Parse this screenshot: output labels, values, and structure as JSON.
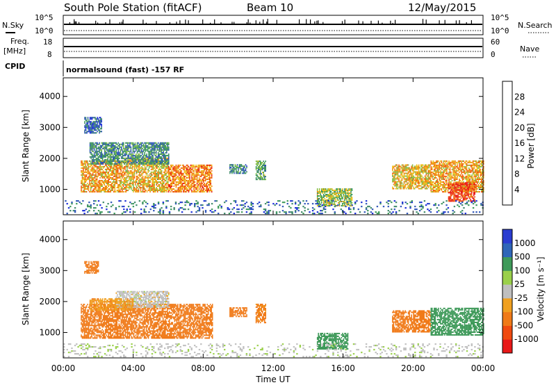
{
  "header": {
    "station": "South Pole Station (fitACF)",
    "beam": "Beam 10",
    "date": "12/May/2015",
    "program": "normalsound (fast) -157 RF"
  },
  "aux_panel": {
    "left_labels": {
      "nsky": "N.Sky",
      "freq_line1": "Freq.",
      "freq_line2": "[MHz]",
      "cpid": "CPID"
    },
    "right_labels": {
      "nsearch": "N.Search",
      "nave": "Nave"
    },
    "nsky_ticks": [
      "10^5",
      "10^0"
    ],
    "nsearch_ticks": [
      "10^5",
      "10^0"
    ],
    "freq_ticks": [
      "18",
      "8"
    ],
    "nave_ticks": [
      "60",
      "0"
    ]
  },
  "colors": {
    "power": [
      "#1a2cd8",
      "#2e55b8",
      "#3f8a6a",
      "#3d9a5a",
      "#88c04a",
      "#f0c020",
      "#f08a18",
      "#f05a10",
      "#e81818"
    ],
    "velocity": [
      "#e81818",
      "#f04a10",
      "#f07a18",
      "#f0a020",
      "#bfbfbf",
      "#9ad04a",
      "#3f9a5a",
      "#2f66b8",
      "#2a3cd0"
    ]
  },
  "chart_data": [
    {
      "type": "heatmap",
      "name": "power",
      "ylabel": "Slant Range [km]",
      "xlabel": "Time UT",
      "xlim": [
        0,
        24
      ],
      "ylim": [
        180,
        4600
      ],
      "x_tick_labels": [
        "00:00",
        "04:00",
        "08:00",
        "12:00",
        "16:00",
        "20:00",
        "00:00"
      ],
      "x_ticks": [
        0,
        4,
        8,
        12,
        16,
        20,
        24
      ],
      "y_ticks": [
        1000,
        2000,
        3000,
        4000
      ],
      "colorbar": {
        "label": "Power [dB]",
        "range": [
          0,
          32
        ],
        "tick_labels": [
          "28",
          "24",
          "20",
          "16",
          "12",
          "8",
          "4"
        ],
        "ticks": [
          28,
          24,
          20,
          16,
          12,
          8,
          4
        ]
      },
      "patches": [
        {
          "t0": 1.0,
          "t1": 3.5,
          "r0": 900,
          "r1": 1900,
          "v": 22
        },
        {
          "t0": 3.5,
          "t1": 6.0,
          "r0": 900,
          "r1": 2000,
          "v": 20
        },
        {
          "t0": 6.0,
          "t1": 8.5,
          "r0": 900,
          "r1": 1800,
          "v": 24
        },
        {
          "t0": 1.5,
          "t1": 6.0,
          "r0": 1800,
          "r1": 2500,
          "v": 10
        },
        {
          "t0": 1.2,
          "t1": 2.2,
          "r0": 2800,
          "r1": 3300,
          "v": 6
        },
        {
          "t0": 9.5,
          "t1": 10.5,
          "r0": 1500,
          "r1": 1800,
          "v": 9
        },
        {
          "t0": 11.0,
          "t1": 11.6,
          "r0": 1300,
          "r1": 1900,
          "v": 12
        },
        {
          "t0": 14.5,
          "t1": 16.5,
          "r0": 450,
          "r1": 1000,
          "v": 16
        },
        {
          "t0": 18.8,
          "t1": 21.0,
          "r0": 1000,
          "r1": 1800,
          "v": 20
        },
        {
          "t0": 21.0,
          "t1": 24.0,
          "r0": 900,
          "r1": 1900,
          "v": 22
        },
        {
          "t0": 22.0,
          "t1": 23.5,
          "r0": 600,
          "r1": 1200,
          "v": 28
        },
        {
          "t0": 0.0,
          "t1": 24.0,
          "r0": 200,
          "r1": 650,
          "v": 7
        }
      ]
    },
    {
      "type": "heatmap",
      "name": "velocity",
      "ylabel": "Slant Range [km]",
      "xlabel": "Time UT",
      "xlim": [
        0,
        24
      ],
      "ylim": [
        180,
        4600
      ],
      "x_tick_labels": [
        "00:00",
        "04:00",
        "08:00",
        "12:00",
        "16:00",
        "20:00",
        "00:00"
      ],
      "x_ticks": [
        0,
        4,
        8,
        12,
        16,
        20,
        24
      ],
      "y_ticks": [
        1000,
        2000,
        3000,
        4000
      ],
      "colorbar": {
        "label": "Velocity [m s⁻¹]",
        "bins": [
          -1000,
          -500,
          -100,
          -25,
          25,
          100,
          500,
          1000
        ],
        "tick_labels": [
          "1000",
          "500",
          "100",
          "25",
          "-25",
          "-100",
          "-500",
          "-1000"
        ]
      },
      "patches": [
        {
          "t0": 1.0,
          "t1": 8.5,
          "r0": 800,
          "r1": 1900,
          "v": -300
        },
        {
          "t0": 3.0,
          "t1": 6.0,
          "r0": 1800,
          "r1": 2300,
          "v": 0
        },
        {
          "t0": 1.5,
          "t1": 4.0,
          "r0": 1700,
          "r1": 2100,
          "v": -80
        },
        {
          "t0": 1.2,
          "t1": 2.0,
          "r0": 2900,
          "r1": 3300,
          "v": -200
        },
        {
          "t0": 9.5,
          "t1": 10.5,
          "r0": 1500,
          "r1": 1800,
          "v": -200
        },
        {
          "t0": 11.0,
          "t1": 11.6,
          "r0": 1300,
          "r1": 1900,
          "v": -150
        },
        {
          "t0": 14.5,
          "t1": 16.3,
          "r0": 450,
          "r1": 950,
          "v": 300
        },
        {
          "t0": 18.8,
          "t1": 21.0,
          "r0": 1000,
          "r1": 1700,
          "v": -250
        },
        {
          "t0": 21.0,
          "t1": 24.0,
          "r0": 900,
          "r1": 1800,
          "v": 200
        },
        {
          "t0": 0.0,
          "t1": 24.0,
          "r0": 200,
          "r1": 650,
          "v": 10
        }
      ]
    }
  ]
}
